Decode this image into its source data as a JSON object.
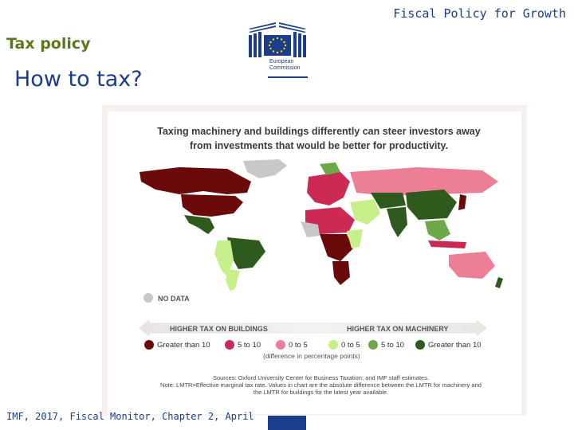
{
  "header": {
    "section_title": "Tax policy",
    "heading": "How to tax?",
    "top_right_title": "Fiscal Policy for Growth",
    "logo_text_line1": "European",
    "logo_text_line2": "Commission"
  },
  "figure": {
    "title_line1": "Taxing machinery and buildings differently can steer investors away",
    "title_line2": "from investments that would be better for productivity.",
    "nodata_label": "NO DATA",
    "arrow_left_label": "HIGHER TAX ON BUILDINGS",
    "arrow_right_label": "HIGHER TAX ON MACHINERY",
    "legend": [
      {
        "label": "Greater than 10",
        "color": "#6b0a0a"
      },
      {
        "label": "5 to 10",
        "color": "#cc2a55"
      },
      {
        "label": "0 to 5",
        "color": "#ec7f96"
      },
      {
        "label": "0 to 5",
        "color": "#c8f08a"
      },
      {
        "label": "5 to 10",
        "color": "#6fa84a"
      },
      {
        "label": "Greater than 10",
        "color": "#2e5a1e"
      }
    ],
    "legend_note": "(difference in percentage points)",
    "sources_line1": "Sources: Oxford University Center for Business Taxation; and IMF staff estimates.",
    "sources_line2": "Note: LMTR=Effective marginal tax rate. Values in chart are the absolute difference between the LMTR for machinery and",
    "sources_line3": "the LMTR for buildings for the latest year available.",
    "nodata_color": "#c8c8c8"
  },
  "footer": {
    "citation": "IMF, 2017, Fiscal Monitor, Chapter 2,  April"
  },
  "colors": {
    "brand_blue": "#1a3e8c",
    "section_green": "#5a7a1a"
  }
}
